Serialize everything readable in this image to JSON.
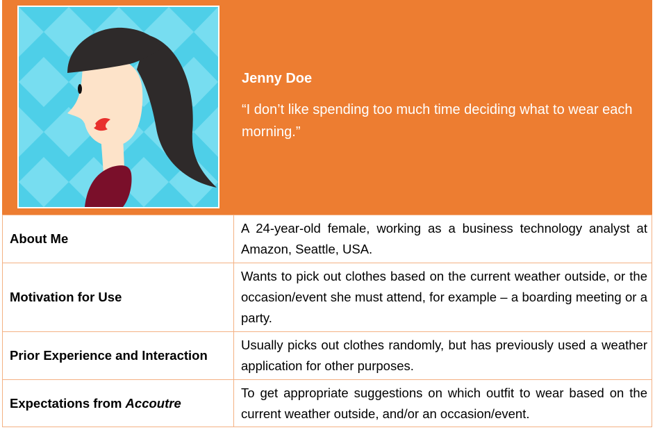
{
  "persona": {
    "name": "Jenny Doe",
    "quote": "“I don’t like spending too much time deciding what to wear each morning.”",
    "colors": {
      "header": "#ed7d31",
      "border": "#f4b183",
      "avatar_background": "#4ecfe8",
      "hair": "#2e2a2a",
      "skin": "#fde3c9",
      "lips": "#e8302d",
      "shirt": "#7a0f2a"
    },
    "avatar_icon": "woman-avatar-icon"
  },
  "rows": [
    {
      "label": "About Me",
      "value": "A 24-year-old female, working as a business technology analyst at Amazon, Seattle, USA."
    },
    {
      "label": "Motivation for Use",
      "value": "Wants to pick out clothes based on the current weather outside, or the occasion/event she must attend, for example – a boarding meeting or a party."
    },
    {
      "label": "Prior Experience and Interaction",
      "value": "Usually picks out clothes randomly, but has previously used a weather application for other purposes."
    },
    {
      "label_prefix": "Expectations from ",
      "label_brand": "Accoutre",
      "value": "To get appropriate suggestions on which outfit to wear based on the current weather outside, and/or an occasion/event."
    }
  ]
}
